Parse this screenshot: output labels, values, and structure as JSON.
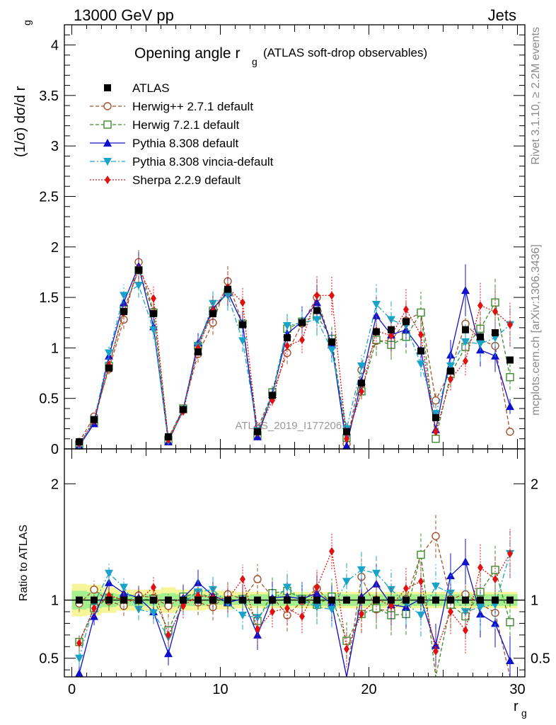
{
  "header": {
    "left": "13000 GeV pp",
    "right": "Jets"
  },
  "side": {
    "rivet": "Rivet 3.1.10, ≥ 2.2M events",
    "mcplots": "mcplots.cern.ch [arXiv:1306.3436]"
  },
  "chart_data": {
    "type": "line",
    "title": "Opening angle r",
    "title_sub": "g",
    "title_note": "(ATLAS soft-drop observables)",
    "watermark": "ATLAS_2019_I1772062",
    "ylabel": "(1/σ) dσ/d r",
    "ylabel_sub": "g",
    "xlabel": "r",
    "xlabel_sub": "g",
    "ratio_ylabel": "Ratio to ATLAS",
    "xlim": [
      -0.5,
      30.5
    ],
    "ylim": [
      0,
      4.2
    ],
    "ratio_ylim": [
      0.34,
      2.3
    ],
    "x_ticks": [
      "0",
      "10",
      "20",
      "30"
    ],
    "y_ticks": [
      "0",
      "0.5",
      "1",
      "1.5",
      "2",
      "2.5",
      "3",
      "3.5",
      "4"
    ],
    "ratio_ticks": [
      "0.5",
      "1",
      "2"
    ],
    "legend_position": "top-left",
    "x": [
      0.5,
      1.5,
      2.5,
      3.5,
      4.5,
      5.5,
      6.5,
      7.5,
      8.5,
      9.5,
      10.5,
      11.5,
      12.5,
      13.5,
      14.5,
      15.5,
      16.5,
      17.5,
      18.5,
      19.5,
      20.5,
      21.5,
      22.5,
      23.5,
      24.5,
      25.5,
      26.5,
      27.5,
      28.5,
      29.5
    ],
    "series": [
      {
        "name": "ATLAS",
        "color": "#000000",
        "marker": "square-filled",
        "line": "none",
        "values": [
          0.07,
          0.29,
          0.8,
          1.36,
          1.77,
          1.34,
          0.12,
          0.39,
          0.96,
          1.34,
          1.58,
          1.23,
          0.17,
          0.53,
          1.1,
          1.25,
          1.37,
          1.06,
          0.17,
          0.65,
          1.16,
          1.18,
          1.26,
          0.97,
          0.31,
          0.77,
          1.18,
          1.11,
          1.15,
          0.88
        ],
        "ratio": [
          1,
          1,
          1,
          1,
          1,
          1,
          1,
          1,
          1,
          1,
          1,
          1,
          1,
          1,
          1,
          1,
          1,
          1,
          1,
          1,
          1,
          1,
          1,
          1,
          1,
          1,
          1,
          1,
          1,
          1
        ]
      },
      {
        "name": "Herwig++ 2.7.1 default",
        "color": "#a0522d",
        "marker": "circle-open",
        "line": "dashed",
        "values": [
          0.07,
          0.32,
          0.79,
          1.28,
          1.85,
          1.36,
          0.11,
          0.4,
          0.94,
          1.25,
          1.66,
          1.24,
          0.2,
          0.55,
          0.95,
          1.24,
          1.5,
          1.03,
          0.05,
          0.78,
          1.07,
          1.07,
          1.27,
          1.35,
          0.48,
          0.78,
          1.24,
          1.08,
          1.02,
          0.17
        ],
        "ratio": [
          0.97,
          1.09,
          0.99,
          0.95,
          1.04,
          1.02,
          0.95,
          1.03,
          0.98,
          0.94,
          1.05,
          1.01,
          1.18,
          1.03,
          0.87,
          0.99,
          1.1,
          0.97,
          0.32,
          1.2,
          0.92,
          0.91,
          1.01,
          1.39,
          1.55,
          1.01,
          1.05,
          0.97,
          0.89,
          0.19
        ]
      },
      {
        "name": "Herwig 7.2.1 default",
        "color": "#3a8c2a",
        "marker": "square-open",
        "line": "dashed",
        "values": [
          0.04,
          0.27,
          0.82,
          1.38,
          1.77,
          1.35,
          0.09,
          0.4,
          1.02,
          1.37,
          1.55,
          1.24,
          0.14,
          0.56,
          1.19,
          1.26,
          1.32,
          1.09,
          0.11,
          0.57,
          1.08,
          1.03,
          1.11,
          1.35,
          0.1,
          0.74,
          1.01,
          1.19,
          1.45,
          0.71
        ],
        "ratio": [
          0.64,
          0.93,
          1.02,
          1.01,
          1.0,
          1.01,
          0.74,
          1.03,
          1.06,
          1.02,
          0.98,
          1.01,
          0.82,
          1.06,
          1.08,
          1.01,
          0.96,
          1.03,
          0.65,
          0.88,
          0.93,
          0.87,
          0.88,
          1.39,
          0.32,
          0.96,
          0.86,
          1.07,
          1.26,
          0.81
        ]
      },
      {
        "name": "Pythia 8.308 default",
        "color": "#1010cc",
        "marker": "triangle-up",
        "line": "solid",
        "values": [
          0.03,
          0.25,
          0.92,
          1.45,
          1.81,
          1.21,
          0.07,
          0.39,
          1.05,
          1.39,
          1.55,
          1.24,
          0.12,
          0.54,
          1.14,
          1.26,
          1.45,
          1.03,
          0.03,
          0.67,
          1.32,
          1.13,
          1.18,
          0.98,
          0.19,
          0.93,
          1.57,
          0.98,
          0.92,
          0.42
        ],
        "ratio": [
          0.37,
          0.86,
          1.15,
          1.06,
          1.02,
          0.9,
          0.54,
          1.02,
          1.15,
          1.04,
          0.98,
          1.01,
          0.7,
          1.02,
          1.03,
          1.01,
          1.06,
          0.97,
          0.18,
          1.03,
          1.14,
          0.96,
          0.94,
          1.01,
          0.61,
          1.21,
          1.33,
          0.88,
          0.8,
          0.48
        ]
      },
      {
        "name": "Pythia 8.308 vincia-default",
        "color": "#1aa3c8",
        "marker": "triangle-down",
        "line": "dashdot",
        "values": [
          0.03,
          0.28,
          0.95,
          1.52,
          1.62,
          1.18,
          0.08,
          0.38,
          1.02,
          1.44,
          1.52,
          1.07,
          0.18,
          0.52,
          1.22,
          1.25,
          1.28,
          0.98,
          0.2,
          0.82,
          1.43,
          1.28,
          1.22,
          0.84,
          0.35,
          0.82,
          1.06,
          1.04,
          1.1,
          1.23
        ],
        "ratio": [
          0.5,
          0.97,
          1.23,
          1.11,
          0.92,
          0.89,
          0.68,
          0.98,
          1.07,
          1.09,
          0.97,
          0.87,
          0.85,
          0.99,
          1.11,
          1.0,
          0.94,
          0.92,
          1.16,
          1.26,
          1.23,
          1.09,
          0.97,
          0.87,
          1.12,
          1.06,
          0.9,
          0.94,
          0.96,
          1.4
        ]
      },
      {
        "name": "Sherpa 2.2.9 default",
        "color": "#e01010",
        "marker": "diamond-filled",
        "line": "dotted",
        "values": [
          0.05,
          0.28,
          0.83,
          1.35,
          1.78,
          1.49,
          0.09,
          0.37,
          1.0,
          1.37,
          1.6,
          1.45,
          0.16,
          0.48,
          1.02,
          1.08,
          1.52,
          1.52,
          0.1,
          0.57,
          1.17,
          1.12,
          1.38,
          1.13,
          0.17,
          0.69,
          0.87,
          1.42,
          1.36,
          1.23
        ],
        "ratio": [
          0.63,
          0.93,
          1.04,
          1.0,
          1.0,
          1.11,
          0.7,
          0.95,
          1.04,
          1.02,
          1.01,
          1.18,
          0.75,
          0.9,
          0.93,
          0.86,
          1.11,
          1.42,
          0.58,
          0.88,
          1.01,
          0.95,
          1.1,
          1.16,
          0.56,
          0.9,
          0.74,
          1.28,
          1.18,
          1.4
        ]
      }
    ],
    "uncertainty_band_1s": [
      0.08,
      0.07,
      0.06,
      0.05,
      0.05,
      0.05,
      0.06,
      0.05,
      0.05,
      0.04,
      0.04,
      0.04,
      0.05,
      0.05,
      0.05,
      0.05,
      0.05,
      0.05,
      0.05,
      0.05,
      0.05,
      0.05,
      0.05,
      0.05,
      0.05,
      0.05,
      0.05,
      0.05,
      0.05,
      0.05
    ],
    "uncertainty_band_2s": [
      0.14,
      0.13,
      0.11,
      0.09,
      0.09,
      0.09,
      0.11,
      0.09,
      0.09,
      0.08,
      0.08,
      0.07,
      0.07,
      0.07,
      0.07,
      0.07,
      0.07,
      0.07,
      0.07,
      0.07,
      0.07,
      0.07,
      0.07,
      0.07,
      0.07,
      0.07,
      0.07,
      0.07,
      0.07,
      0.07
    ]
  }
}
